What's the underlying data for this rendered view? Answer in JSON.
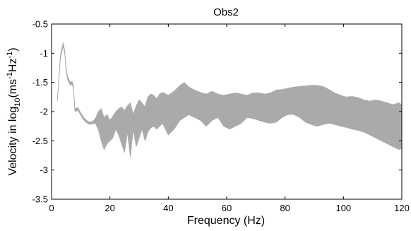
{
  "chart_data": {
    "type": "area",
    "title": "Obs2",
    "xlabel": "Frequency (Hz)",
    "ylabel_parts": {
      "pre": "Velocity in log",
      "sub": "10",
      "mid": "(ms",
      "sup1": "-1",
      "mid2": "Hz",
      "sup2": "-1",
      "post": ")"
    },
    "xlim": [
      0,
      120
    ],
    "ylim": [
      -3.5,
      -0.5
    ],
    "xticks": [
      0,
      20,
      40,
      60,
      80,
      100,
      120
    ],
    "yticks": [
      -0.5,
      -1,
      -1.5,
      -2,
      -2.5,
      -3,
      -3.5
    ],
    "xtick_labels": [
      "0",
      "20",
      "40",
      "60",
      "80",
      "100",
      "120"
    ],
    "ytick_labels": [
      "-0.5",
      "-1",
      "-1.5",
      "-2",
      "-2.5",
      "-3",
      "-3.5"
    ],
    "grid": false,
    "fill_color": "#aaaaaa",
    "series": [
      {
        "x": [
          2.0,
          3.0,
          3.5,
          4.0,
          4.5,
          5.0,
          5.5,
          6.0,
          6.5,
          7.0,
          7.5,
          8.0,
          9.0,
          10.0,
          11.0,
          12.0,
          13.0,
          14.0,
          15.0,
          16.0,
          17.0,
          18.0,
          19.0,
          20.0,
          21.0,
          22.0,
          23.0,
          24.0,
          25.0,
          26.0,
          27.0,
          28.0,
          29.0,
          30.0,
          31.0,
          32.0,
          33.0,
          34.0,
          35.0,
          36.0,
          37.0,
          38.0,
          40.0,
          42.0,
          44.0,
          45.5,
          47.0,
          49.0,
          51.0,
          53.0,
          55.0,
          57.0,
          59.0,
          61.0,
          63.0,
          65.0,
          67.0,
          69.0,
          71.0,
          73.0,
          75.0,
          77.0,
          79.0,
          81.0,
          83.0,
          85.0,
          87.0,
          89.0,
          91.0,
          93.0,
          95.0,
          97.0,
          99.0,
          101.0,
          103.0,
          105.0,
          107.0,
          109.0,
          111.0,
          113.0,
          115.0,
          117.0,
          119.0,
          120.0
        ],
        "upper": [
          -1.78,
          -1.05,
          -0.92,
          -0.82,
          -0.95,
          -1.25,
          -1.4,
          -1.45,
          -1.5,
          -1.48,
          -1.55,
          -1.95,
          -1.93,
          -2.02,
          -2.1,
          -2.15,
          -2.18,
          -2.17,
          -2.12,
          -2.0,
          -1.95,
          -2.1,
          -2.05,
          -2.15,
          -2.08,
          -2.0,
          -1.95,
          -1.92,
          -1.98,
          -1.9,
          -1.85,
          -2.05,
          -1.9,
          -1.8,
          -1.85,
          -1.92,
          -1.75,
          -1.7,
          -1.72,
          -1.78,
          -1.7,
          -1.67,
          -1.72,
          -1.65,
          -1.55,
          -1.5,
          -1.58,
          -1.63,
          -1.67,
          -1.7,
          -1.65,
          -1.7,
          -1.72,
          -1.7,
          -1.68,
          -1.7,
          -1.72,
          -1.68,
          -1.68,
          -1.7,
          -1.68,
          -1.63,
          -1.62,
          -1.6,
          -1.58,
          -1.57,
          -1.56,
          -1.55,
          -1.55,
          -1.57,
          -1.62,
          -1.68,
          -1.72,
          -1.75,
          -1.74,
          -1.76,
          -1.8,
          -1.82,
          -1.8,
          -1.82,
          -1.85,
          -1.88,
          -1.85,
          -1.88
        ],
        "lower": [
          -1.82,
          -1.1,
          -0.98,
          -0.88,
          -1.0,
          -1.3,
          -1.45,
          -1.5,
          -1.55,
          -1.53,
          -1.6,
          -2.0,
          -1.98,
          -2.06,
          -2.14,
          -2.19,
          -2.22,
          -2.21,
          -2.2,
          -2.3,
          -2.5,
          -2.65,
          -2.55,
          -2.5,
          -2.45,
          -2.3,
          -2.4,
          -2.55,
          -2.7,
          -2.35,
          -2.78,
          -2.3,
          -2.6,
          -2.45,
          -2.3,
          -2.5,
          -2.35,
          -2.28,
          -2.25,
          -2.3,
          -2.25,
          -2.2,
          -2.4,
          -2.3,
          -2.15,
          -2.1,
          -2.05,
          -2.1,
          -2.15,
          -2.25,
          -2.15,
          -2.1,
          -2.25,
          -2.3,
          -2.25,
          -2.2,
          -2.1,
          -2.12,
          -2.15,
          -2.18,
          -2.2,
          -2.18,
          -2.1,
          -2.05,
          -2.05,
          -2.1,
          -2.18,
          -2.22,
          -2.25,
          -2.22,
          -2.2,
          -2.22,
          -2.25,
          -2.27,
          -2.3,
          -2.32,
          -2.35,
          -2.4,
          -2.45,
          -2.5,
          -2.55,
          -2.6,
          -2.65,
          -2.63
        ]
      }
    ]
  }
}
